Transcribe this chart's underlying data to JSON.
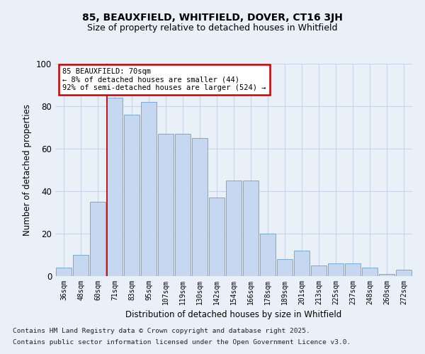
{
  "title1": "85, BEAUXFIELD, WHITFIELD, DOVER, CT16 3JH",
  "title2": "Size of property relative to detached houses in Whitfield",
  "xlabel": "Distribution of detached houses by size in Whitfield",
  "ylabel": "Number of detached properties",
  "categories": [
    "36sqm",
    "48sqm",
    "60sqm",
    "71sqm",
    "83sqm",
    "95sqm",
    "107sqm",
    "119sqm",
    "130sqm",
    "142sqm",
    "154sqm",
    "166sqm",
    "178sqm",
    "189sqm",
    "201sqm",
    "213sqm",
    "225sqm",
    "237sqm",
    "248sqm",
    "260sqm",
    "272sqm"
  ],
  "values": [
    4,
    10,
    35,
    84,
    76,
    82,
    67,
    67,
    65,
    37,
    45,
    45,
    20,
    8,
    12,
    5,
    6,
    6,
    4,
    1,
    3
  ],
  "bar_color": "#c5d8f0",
  "bar_edge_color": "#7aaad0",
  "annotation_title": "85 BEAUXFIELD: 70sqm",
  "annotation_line1": "← 8% of detached houses are smaller (44)",
  "annotation_line2": "92% of semi-detached houses are larger (524) →",
  "annotation_box_color": "#ffffff",
  "annotation_box_edge": "#cc0000",
  "red_line_color": "#cc0000",
  "grid_color": "#c8d4e8",
  "bg_color": "#eaf0f8",
  "ylim": [
    0,
    100
  ],
  "yticks": [
    0,
    20,
    40,
    60,
    80,
    100
  ],
  "footer1": "Contains HM Land Registry data © Crown copyright and database right 2025.",
  "footer2": "Contains public sector information licensed under the Open Government Licence v3.0."
}
